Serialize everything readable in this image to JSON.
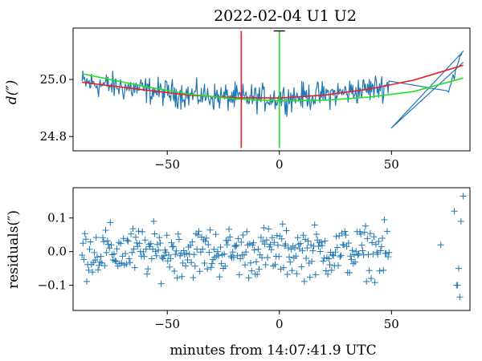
{
  "figure": {
    "title": "2022-02-04  U1 U2",
    "xlabel": "minutes from 14:07:41.9 UTC"
  },
  "colors": {
    "data": "#1f77b4",
    "fit_red": "#e8202a",
    "fit_green": "#22e022",
    "marker_black": "#000000"
  },
  "chart_data": [
    {
      "type": "line",
      "panel": "top",
      "ylabel": "d(″)",
      "xlim": [
        -92,
        85
      ],
      "ylim": [
        24.75,
        25.18
      ],
      "xticks": [
        -50,
        0,
        50
      ],
      "xtick_labels": [
        "−50",
        "0",
        "50"
      ],
      "yticks": [
        24.8,
        25.0
      ],
      "ytick_labels": [
        "24.8",
        "25.0"
      ],
      "grid": false,
      "series": [
        {
          "kind": "noisy-measurement",
          "color": "#1f77b4",
          "x_range": [
            -88,
            82
          ],
          "gap": [
            49,
            75
          ],
          "noise_amplitude": 0.07
        },
        {
          "kind": "fit-red",
          "x": [
            -88,
            -60,
            -40,
            -20,
            0,
            20,
            40,
            60,
            82
          ],
          "y": [
            24.99,
            24.963,
            24.945,
            24.936,
            24.935,
            24.945,
            24.966,
            24.998,
            25.05
          ]
        },
        {
          "kind": "fit-green",
          "x": [
            -88,
            -60,
            -40,
            -20,
            0,
            20,
            40,
            60,
            82
          ],
          "y": [
            25.02,
            24.975,
            24.948,
            24.932,
            24.925,
            24.927,
            24.938,
            24.958,
            25.005
          ]
        }
      ],
      "annotations": [
        {
          "kind": "vertical-line",
          "color": "#e8202a",
          "x": -17,
          "y_range": [
            24.76,
            25.17
          ]
        },
        {
          "kind": "vertical-line",
          "color": "#22e022",
          "x": 0,
          "y_range": [
            24.76,
            25.17
          ]
        },
        {
          "kind": "t-marker",
          "color": "#000000",
          "x": 0,
          "y": 25.17
        }
      ]
    },
    {
      "type": "scatter",
      "panel": "bottom",
      "ylabel": "residuals(″)",
      "xlim": [
        -92,
        85
      ],
      "ylim": [
        -0.175,
        0.19
      ],
      "xticks": [
        -50,
        0,
        50
      ],
      "xtick_labels": [
        "−50",
        "0",
        "50"
      ],
      "yticks": [
        -0.1,
        0.0,
        0.1
      ],
      "ytick_labels": [
        "−0.1",
        "0.0",
        "0.1"
      ],
      "grid": false,
      "marker": "+",
      "points_description": "residuals scattered between about -0.15 and 0.17 for x from -88 to 49, plus a few points near x = 72 to 82",
      "x_range": [
        -88,
        49
      ],
      "extra_x": [
        72,
        78,
        79,
        80,
        81,
        82
      ],
      "noise_amplitude": 0.11
    }
  ]
}
